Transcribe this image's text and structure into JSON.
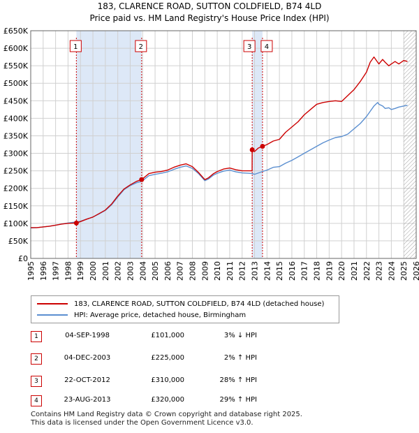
{
  "title_line1": "183, CLARENCE ROAD, SUTTON COLDFIELD, B74 4LD",
  "title_line2": "Price paid vs. HM Land Registry's House Price Index (HPI)",
  "colors": {
    "property": "#cc0000",
    "hpi": "#5b8fd0",
    "shade": "#dde8f7",
    "grid": "#d0d0d0"
  },
  "chart_data": {
    "type": "line",
    "xlim": [
      1995,
      2026
    ],
    "ylim": [
      0,
      650000
    ],
    "x_ticks": [
      "1995",
      "1996",
      "1997",
      "1998",
      "1999",
      "2000",
      "2001",
      "2002",
      "2003",
      "2004",
      "2005",
      "2006",
      "2007",
      "2008",
      "2009",
      "2010",
      "2011",
      "2012",
      "2013",
      "2014",
      "2015",
      "2016",
      "2017",
      "2018",
      "2019",
      "2020",
      "2021",
      "2022",
      "2023",
      "2024",
      "2025",
      "2026"
    ],
    "y_ticks": [
      {
        "value": 0,
        "label": "£0"
      },
      {
        "value": 50000,
        "label": "£50K"
      },
      {
        "value": 100000,
        "label": "£100K"
      },
      {
        "value": 150000,
        "label": "£150K"
      },
      {
        "value": 200000,
        "label": "£200K"
      },
      {
        "value": 250000,
        "label": "£250K"
      },
      {
        "value": 300000,
        "label": "£300K"
      },
      {
        "value": 350000,
        "label": "£350K"
      },
      {
        "value": 400000,
        "label": "£400K"
      },
      {
        "value": 450000,
        "label": "£450K"
      },
      {
        "value": 500000,
        "label": "£500K"
      },
      {
        "value": 550000,
        "label": "£550K"
      },
      {
        "value": 600000,
        "label": "£600K"
      },
      {
        "value": 650000,
        "label": "£650K"
      }
    ],
    "shaded_regions": [
      [
        1998.67,
        2003.92
      ],
      [
        2012.81,
        2013.64
      ]
    ],
    "forecast_start": 2025.0,
    "series": [
      {
        "name": "183, CLARENCE ROAD, SUTTON COLDFIELD, B74 4LD (detached house)",
        "x": [
          1995.0,
          1995.5,
          1996.0,
          1996.5,
          1997.0,
          1997.5,
          1998.0,
          1998.67,
          1999.0,
          1999.5,
          2000.0,
          2000.5,
          2001.0,
          2001.5,
          2002.0,
          2002.5,
          2003.0,
          2003.5,
          2003.92,
          2004.5,
          2005.0,
          2005.5,
          2006.0,
          2006.5,
          2007.0,
          2007.5,
          2008.0,
          2008.5,
          2009.0,
          2009.3,
          2009.7,
          2010.0,
          2010.5,
          2011.0,
          2011.5,
          2012.0,
          2012.5,
          2012.8,
          2012.81,
          2013.0,
          2013.3,
          2013.64,
          2014.0,
          2014.5,
          2015.0,
          2015.5,
          2016.0,
          2016.5,
          2017.0,
          2017.5,
          2018.0,
          2018.5,
          2019.0,
          2019.5,
          2020.0,
          2020.5,
          2021.0,
          2021.5,
          2022.0,
          2022.3,
          2022.6,
          2022.9,
          2023.0,
          2023.3,
          2023.5,
          2023.8,
          2024.0,
          2024.3,
          2024.6,
          2025.0,
          2025.3
        ],
        "values": [
          88000,
          88000,
          90000,
          92000,
          95000,
          98000,
          100000,
          101000,
          105000,
          112000,
          118000,
          128000,
          138000,
          155000,
          178000,
          198000,
          210000,
          220000,
          225000,
          242000,
          246000,
          248000,
          252000,
          260000,
          266000,
          270000,
          262000,
          245000,
          225000,
          230000,
          242000,
          248000,
          255000,
          258000,
          253000,
          250000,
          250000,
          250000,
          310000,
          305000,
          315000,
          320000,
          325000,
          335000,
          340000,
          360000,
          375000,
          390000,
          410000,
          425000,
          440000,
          445000,
          448000,
          450000,
          448000,
          465000,
          482000,
          505000,
          532000,
          560000,
          575000,
          560000,
          555000,
          568000,
          560000,
          550000,
          555000,
          562000,
          555000,
          565000,
          562000
        ]
      },
      {
        "name": "HPI: Average price, detached house, Birmingham",
        "x": [
          1995.0,
          1995.5,
          1996.0,
          1996.5,
          1997.0,
          1997.5,
          1998.0,
          1998.67,
          1999.0,
          1999.5,
          2000.0,
          2000.5,
          2001.0,
          2001.5,
          2002.0,
          2002.5,
          2003.0,
          2003.5,
          2003.92,
          2004.5,
          2005.0,
          2005.5,
          2006.0,
          2006.5,
          2007.0,
          2007.5,
          2008.0,
          2008.5,
          2009.0,
          2009.3,
          2009.7,
          2010.0,
          2010.5,
          2011.0,
          2011.5,
          2012.0,
          2012.5,
          2012.81,
          2013.0,
          2013.64,
          2014.0,
          2014.5,
          2015.0,
          2015.5,
          2016.0,
          2016.5,
          2017.0,
          2017.5,
          2018.0,
          2018.5,
          2019.0,
          2019.5,
          2020.0,
          2020.5,
          2021.0,
          2021.5,
          2022.0,
          2022.3,
          2022.6,
          2022.9,
          2023.0,
          2023.3,
          2023.5,
          2023.8,
          2024.0,
          2024.3,
          2024.6,
          2025.0,
          2025.3
        ],
        "values": [
          87000,
          88000,
          90000,
          92000,
          95000,
          98000,
          101000,
          104000,
          106000,
          112000,
          118000,
          127000,
          137000,
          153000,
          175000,
          196000,
          208000,
          216000,
          220000,
          236000,
          240000,
          243000,
          247000,
          254000,
          260000,
          264000,
          257000,
          242000,
          222000,
          227000,
          238000,
          243000,
          249000,
          252000,
          247000,
          244000,
          243000,
          242000,
          240000,
          248000,
          252000,
          260000,
          262000,
          272000,
          280000,
          290000,
          300000,
          310000,
          320000,
          330000,
          338000,
          345000,
          348000,
          355000,
          370000,
          385000,
          405000,
          420000,
          435000,
          445000,
          440000,
          435000,
          428000,
          430000,
          425000,
          428000,
          432000,
          435000,
          437000
        ]
      }
    ],
    "sales": [
      {
        "label": "1",
        "x": 1998.67,
        "value": 101000
      },
      {
        "label": "2",
        "x": 2003.92,
        "value": 225000
      },
      {
        "label": "3",
        "x": 2012.81,
        "value": 310000
      },
      {
        "label": "4",
        "x": 2013.64,
        "value": 320000
      }
    ]
  },
  "legend": {
    "property": "183, CLARENCE ROAD, SUTTON COLDFIELD, B74 4LD (detached house)",
    "hpi": "HPI: Average price, detached house, Birmingham"
  },
  "sales_table": [
    {
      "num": "1",
      "date": "04-SEP-1998",
      "price": "£101,000",
      "hpi": "3% ↓ HPI"
    },
    {
      "num": "2",
      "date": "04-DEC-2003",
      "price": "£225,000",
      "hpi": "2% ↑ HPI"
    },
    {
      "num": "3",
      "date": "22-OCT-2012",
      "price": "£310,000",
      "hpi": "28% ↑ HPI"
    },
    {
      "num": "4",
      "date": "23-AUG-2013",
      "price": "£320,000",
      "hpi": "29% ↑ HPI"
    }
  ],
  "footer": {
    "line1": "Contains HM Land Registry data © Crown copyright and database right 2025.",
    "line2": "This data is licensed under the Open Government Licence v3.0."
  }
}
